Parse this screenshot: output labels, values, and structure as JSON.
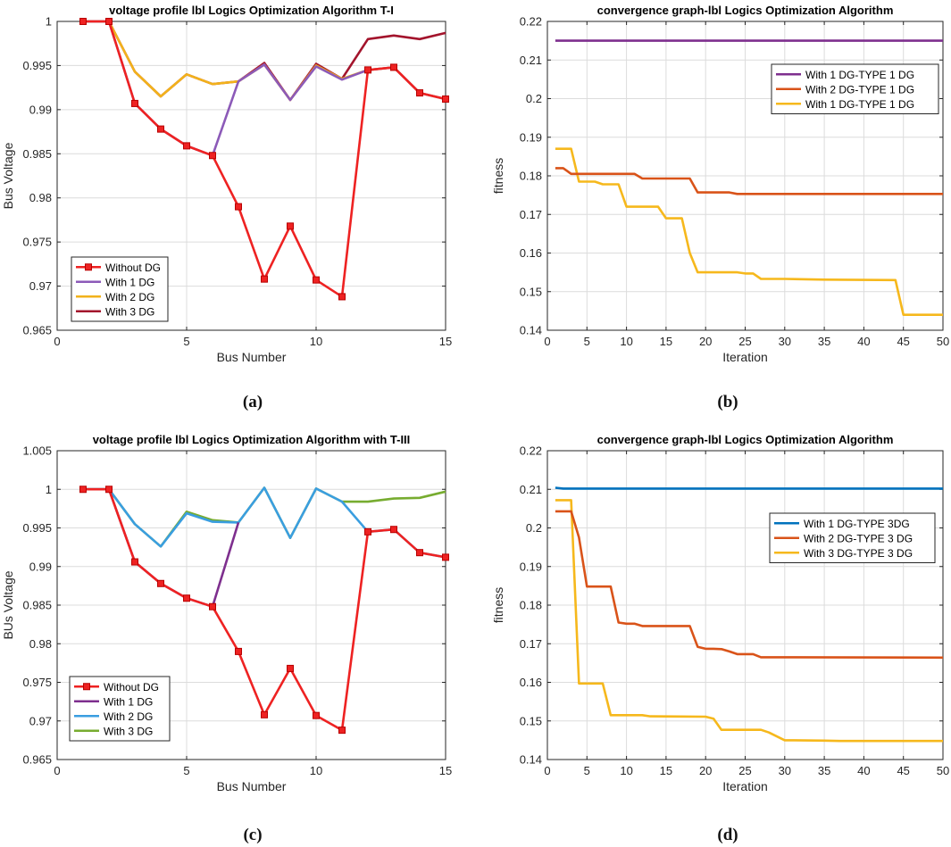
{
  "panel_labels": [
    "(a)",
    "(b)",
    "(c)",
    "(d)"
  ],
  "chart_data": [
    {
      "type": "line",
      "title": "voltage profile lbl Logics Optimization Algorithm T-I",
      "xlabel": "Bus Number",
      "ylabel": "Bus Voltage",
      "xlim": [
        0,
        15
      ],
      "ylim": [
        0.965,
        1.0
      ],
      "xticks": [
        0,
        5,
        10,
        15
      ],
      "yticks": [
        0.965,
        0.97,
        0.975,
        0.98,
        0.985,
        0.99,
        0.995,
        1.0
      ],
      "ytick_labels": [
        "0.965",
        "0.97",
        "0.975",
        "0.98",
        "0.985",
        "0.99",
        "0.995",
        "1"
      ],
      "grid": true,
      "legend_position": "bottom-left",
      "series": [
        {
          "name": "Without DG",
          "color": "#ee2222",
          "marker": "square",
          "x": [
            1,
            2,
            3,
            4,
            5,
            6,
            7,
            8,
            9,
            10,
            11,
            12,
            13,
            14,
            15
          ],
          "y": [
            1.0,
            1.0,
            0.9907,
            0.9878,
            0.9859,
            0.9848,
            0.979,
            0.9708,
            0.9768,
            0.9707,
            0.9688,
            0.9945,
            0.9948,
            0.9919,
            0.9912
          ]
        },
        {
          "name": "With 1 DG",
          "color": "#8c5ab8",
          "marker": "none",
          "x": [
            1,
            2,
            3,
            4,
            5,
            6,
            7,
            8,
            9,
            10,
            11,
            12,
            13,
            14,
            15
          ],
          "y": [
            1.0,
            1.0,
            0.9907,
            0.9878,
            0.9859,
            0.9848,
            0.9932,
            0.9951,
            0.9911,
            0.9949,
            0.9934,
            0.9945,
            0.9948,
            0.9919,
            0.9912
          ]
        },
        {
          "name": "With 2 DG",
          "color": "#f2b21b",
          "marker": "none",
          "x": [
            1,
            2,
            3,
            4,
            5,
            6,
            7,
            8,
            9,
            10,
            11,
            12,
            13,
            14,
            15
          ],
          "y": [
            1.0,
            1.0,
            0.9943,
            0.9915,
            0.994,
            0.9929,
            0.9932,
            0.9951,
            0.9911,
            0.995,
            0.9935,
            0.9945,
            0.9948,
            0.9919,
            0.9912
          ]
        },
        {
          "name": "With 3 DG",
          "color": "#a3142c",
          "marker": "none",
          "x": [
            1,
            2,
            3,
            4,
            5,
            6,
            7,
            8,
            9,
            10,
            11,
            12,
            13,
            14,
            15
          ],
          "y": [
            1.0,
            1.0,
            0.9943,
            0.9915,
            0.994,
            0.9929,
            0.9932,
            0.9953,
            0.9911,
            0.9952,
            0.9935,
            0.998,
            0.9984,
            0.998,
            0.9987
          ]
        }
      ]
    },
    {
      "type": "line",
      "title": "convergence graph-lbl Logics Optimization Algorithm",
      "xlabel": "Iteration",
      "ylabel": "fitness",
      "xlim": [
        0,
        50
      ],
      "ylim": [
        0.14,
        0.22
      ],
      "xticks": [
        0,
        5,
        10,
        15,
        20,
        25,
        30,
        35,
        40,
        45,
        50
      ],
      "yticks": [
        0.14,
        0.15,
        0.16,
        0.17,
        0.18,
        0.19,
        0.2,
        0.21,
        0.22
      ],
      "ytick_labels": [
        "0.14",
        "0.15",
        "0.16",
        "0.17",
        "0.18",
        "0.19",
        "0.2",
        "0.21",
        "0.22"
      ],
      "grid": true,
      "legend_position": "top-right",
      "series": [
        {
          "name": "With 1 DG-TYPE 1 DG",
          "color": "#7e2f8e",
          "marker": "none",
          "x": [
            1,
            50
          ],
          "y": [
            0.215,
            0.215
          ]
        },
        {
          "name": "With 2 DG-TYPE 1 DG",
          "color": "#d95319",
          "marker": "none",
          "x": [
            1,
            2,
            3,
            11,
            12,
            18,
            19,
            23,
            24,
            50
          ],
          "y": [
            0.182,
            0.182,
            0.1805,
            0.1805,
            0.1793,
            0.1793,
            0.1757,
            0.1757,
            0.1753,
            0.1753
          ]
        },
        {
          "name": "With 1 DG-TYPE 1 DG",
          "color": "#f6b81c",
          "marker": "none",
          "x": [
            1,
            3,
            4,
            6,
            7,
            9,
            10,
            14,
            15,
            17,
            18,
            19,
            24,
            25,
            26,
            27,
            30,
            35,
            44,
            45,
            50
          ],
          "y": [
            0.187,
            0.187,
            0.1785,
            0.1785,
            0.1778,
            0.1778,
            0.172,
            0.172,
            0.169,
            0.169,
            0.16,
            0.155,
            0.155,
            0.1547,
            0.1547,
            0.1533,
            0.1533,
            0.1531,
            0.153,
            0.144,
            0.144
          ]
        }
      ]
    },
    {
      "type": "line",
      "title": "voltage profile lbl Logics Optimization Algorithm with T-III",
      "xlabel": "Bus Number",
      "ylabel": "BUs Voltage",
      "xlim": [
        0,
        15
      ],
      "ylim": [
        0.965,
        1.005
      ],
      "xticks": [
        0,
        5,
        10,
        15
      ],
      "yticks": [
        0.965,
        0.97,
        0.975,
        0.98,
        0.985,
        0.99,
        0.995,
        1.0,
        1.005
      ],
      "ytick_labels": [
        "0.965",
        "0.97",
        "0.975",
        "0.98",
        "0.985",
        "0.99",
        "0.995",
        "1",
        "1.005"
      ],
      "grid": true,
      "legend_position": "bottom-left",
      "series": [
        {
          "name": "Without DG",
          "color": "#ee2222",
          "marker": "square",
          "x": [
            1,
            2,
            3,
            4,
            5,
            6,
            7,
            8,
            9,
            10,
            11,
            12,
            13,
            14,
            15
          ],
          "y": [
            1.0,
            1.0,
            0.9906,
            0.9878,
            0.9859,
            0.9848,
            0.979,
            0.9708,
            0.9768,
            0.9707,
            0.9688,
            0.9945,
            0.9948,
            0.9918,
            0.9912
          ]
        },
        {
          "name": "With 1 DG",
          "color": "#7e2f8e",
          "marker": "none",
          "x": [
            1,
            2,
            3,
            4,
            5,
            6,
            7
          ],
          "y": [
            1.0,
            1.0,
            0.9906,
            0.9878,
            0.9859,
            0.9848,
            0.9957
          ]
        },
        {
          "name": "With 2 DG",
          "color": "#3a9ee0",
          "marker": "none",
          "x": [
            1,
            2,
            3,
            4,
            5,
            6,
            7,
            8,
            9,
            10,
            11,
            12,
            13,
            14,
            15
          ],
          "y": [
            1.0,
            1.0,
            0.9955,
            0.9926,
            0.9969,
            0.9958,
            0.9957,
            1.0002,
            0.9937,
            1.0001,
            0.9984,
            0.9945,
            0.9948,
            0.9918,
            0.9912
          ]
        },
        {
          "name": "With 3 DG",
          "color": "#77ac30",
          "marker": "none",
          "x": [
            1,
            2,
            3,
            4,
            5,
            6,
            7,
            8,
            9,
            10,
            11,
            12,
            13,
            14,
            15
          ],
          "y": [
            1.0,
            1.0,
            0.9955,
            0.9926,
            0.9971,
            0.996,
            0.9957,
            1.0002,
            0.9937,
            1.0001,
            0.9984,
            0.9984,
            0.9988,
            0.9989,
            0.9997
          ]
        }
      ]
    },
    {
      "type": "line",
      "title": "convergence graph-lbl Logics Optimization Algorithm",
      "xlabel": "Iteration",
      "ylabel": "fitness",
      "xlim": [
        0,
        50
      ],
      "ylim": [
        0.14,
        0.22
      ],
      "xticks": [
        0,
        5,
        10,
        15,
        20,
        25,
        30,
        35,
        40,
        45,
        50
      ],
      "yticks": [
        0.14,
        0.15,
        0.16,
        0.17,
        0.18,
        0.19,
        0.2,
        0.21,
        0.22
      ],
      "ytick_labels": [
        "0.14",
        "0.15",
        "0.16",
        "0.17",
        "0.18",
        "0.19",
        "0.2",
        "0.21",
        "0.22"
      ],
      "grid": true,
      "legend_position": "top-right",
      "series": [
        {
          "name": "With 1 DG-TYPE 3DG",
          "color": "#0072bd",
          "marker": "none",
          "x": [
            1,
            2,
            50
          ],
          "y": [
            0.2104,
            0.2102,
            0.2102
          ]
        },
        {
          "name": "With 2 DG-TYPE 3 DG",
          "color": "#d95319",
          "marker": "none",
          "x": [
            1,
            3,
            4,
            5,
            7,
            8,
            9,
            10,
            11,
            12,
            17,
            18,
            19,
            20,
            21,
            22,
            23,
            24,
            25,
            26,
            27,
            50
          ],
          "y": [
            0.2043,
            0.2043,
            0.1975,
            0.1848,
            0.1848,
            0.1848,
            0.1755,
            0.1752,
            0.1752,
            0.1746,
            0.1746,
            0.1746,
            0.1692,
            0.1687,
            0.1687,
            0.1686,
            0.168,
            0.1673,
            0.1673,
            0.1673,
            0.1665,
            0.1664
          ]
        },
        {
          "name": "With 3 DG-TYPE 3 DG",
          "color": "#f6b81c",
          "marker": "none",
          "x": [
            1,
            3,
            4,
            7,
            8,
            9,
            12,
            13,
            20,
            21,
            22,
            27,
            28,
            30,
            31,
            35,
            37,
            50
          ],
          "y": [
            0.2072,
            0.2072,
            0.1597,
            0.1597,
            0.1515,
            0.1515,
            0.1515,
            0.1512,
            0.1511,
            0.1506,
            0.1477,
            0.1477,
            0.147,
            0.145,
            0.145,
            0.1449,
            0.1448,
            0.1448
          ]
        }
      ]
    }
  ]
}
